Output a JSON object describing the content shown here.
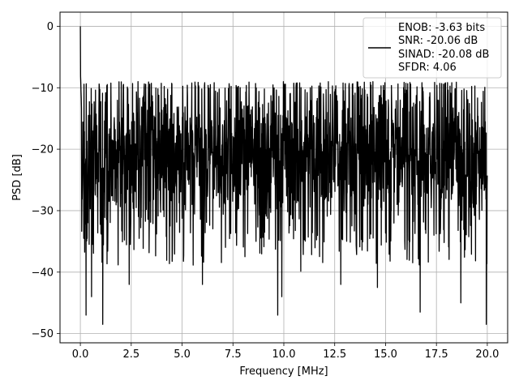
{
  "chart_data": {
    "type": "line",
    "xlabel": "Frequency [MHz]",
    "ylabel": "PSD [dB]",
    "xlim": [
      -1.0,
      21.0
    ],
    "ylim": [
      -51.5,
      2.3
    ],
    "xticks": [
      0.0,
      2.5,
      5.0,
      7.5,
      10.0,
      12.5,
      15.0,
      17.5,
      20.0
    ],
    "xtick_labels": [
      "0.0",
      "2.5",
      "5.0",
      "7.5",
      "10.0",
      "12.5",
      "15.0",
      "17.5",
      "20.0"
    ],
    "yticks": [
      0,
      -10,
      -20,
      -30,
      -40,
      -50
    ],
    "ytick_labels": [
      "0",
      "−10",
      "−20",
      "−30",
      "−40",
      "−50"
    ],
    "grid": true,
    "legend_position": "top-right",
    "series": [
      {
        "color": "#000000",
        "x_range": [
          0.0,
          20.0
        ],
        "typical_range": [
          -33,
          -9
        ],
        "peak": {
          "x": 0.0,
          "y": 0.0
        },
        "deep_minima": [
          {
            "x": 0.28,
            "y": -47.0
          },
          {
            "x": 0.55,
            "y": -44.0
          },
          {
            "x": 1.1,
            "y": -48.5
          },
          {
            "x": 2.4,
            "y": -42.0
          },
          {
            "x": 6.0,
            "y": -42.0
          },
          {
            "x": 9.7,
            "y": -47.0
          },
          {
            "x": 9.9,
            "y": -44.0
          },
          {
            "x": 12.8,
            "y": -42.0
          },
          {
            "x": 14.6,
            "y": -42.5
          },
          {
            "x": 16.7,
            "y": -46.5
          },
          {
            "x": 18.7,
            "y": -45.0
          },
          {
            "x": 19.95,
            "y": -48.5
          }
        ]
      }
    ],
    "legend_lines": [
      "ENOB: -3.63 bits",
      "SNR: -20.06 dB",
      "SINAD: -20.08 dB",
      "SFDR: 4.06"
    ]
  }
}
